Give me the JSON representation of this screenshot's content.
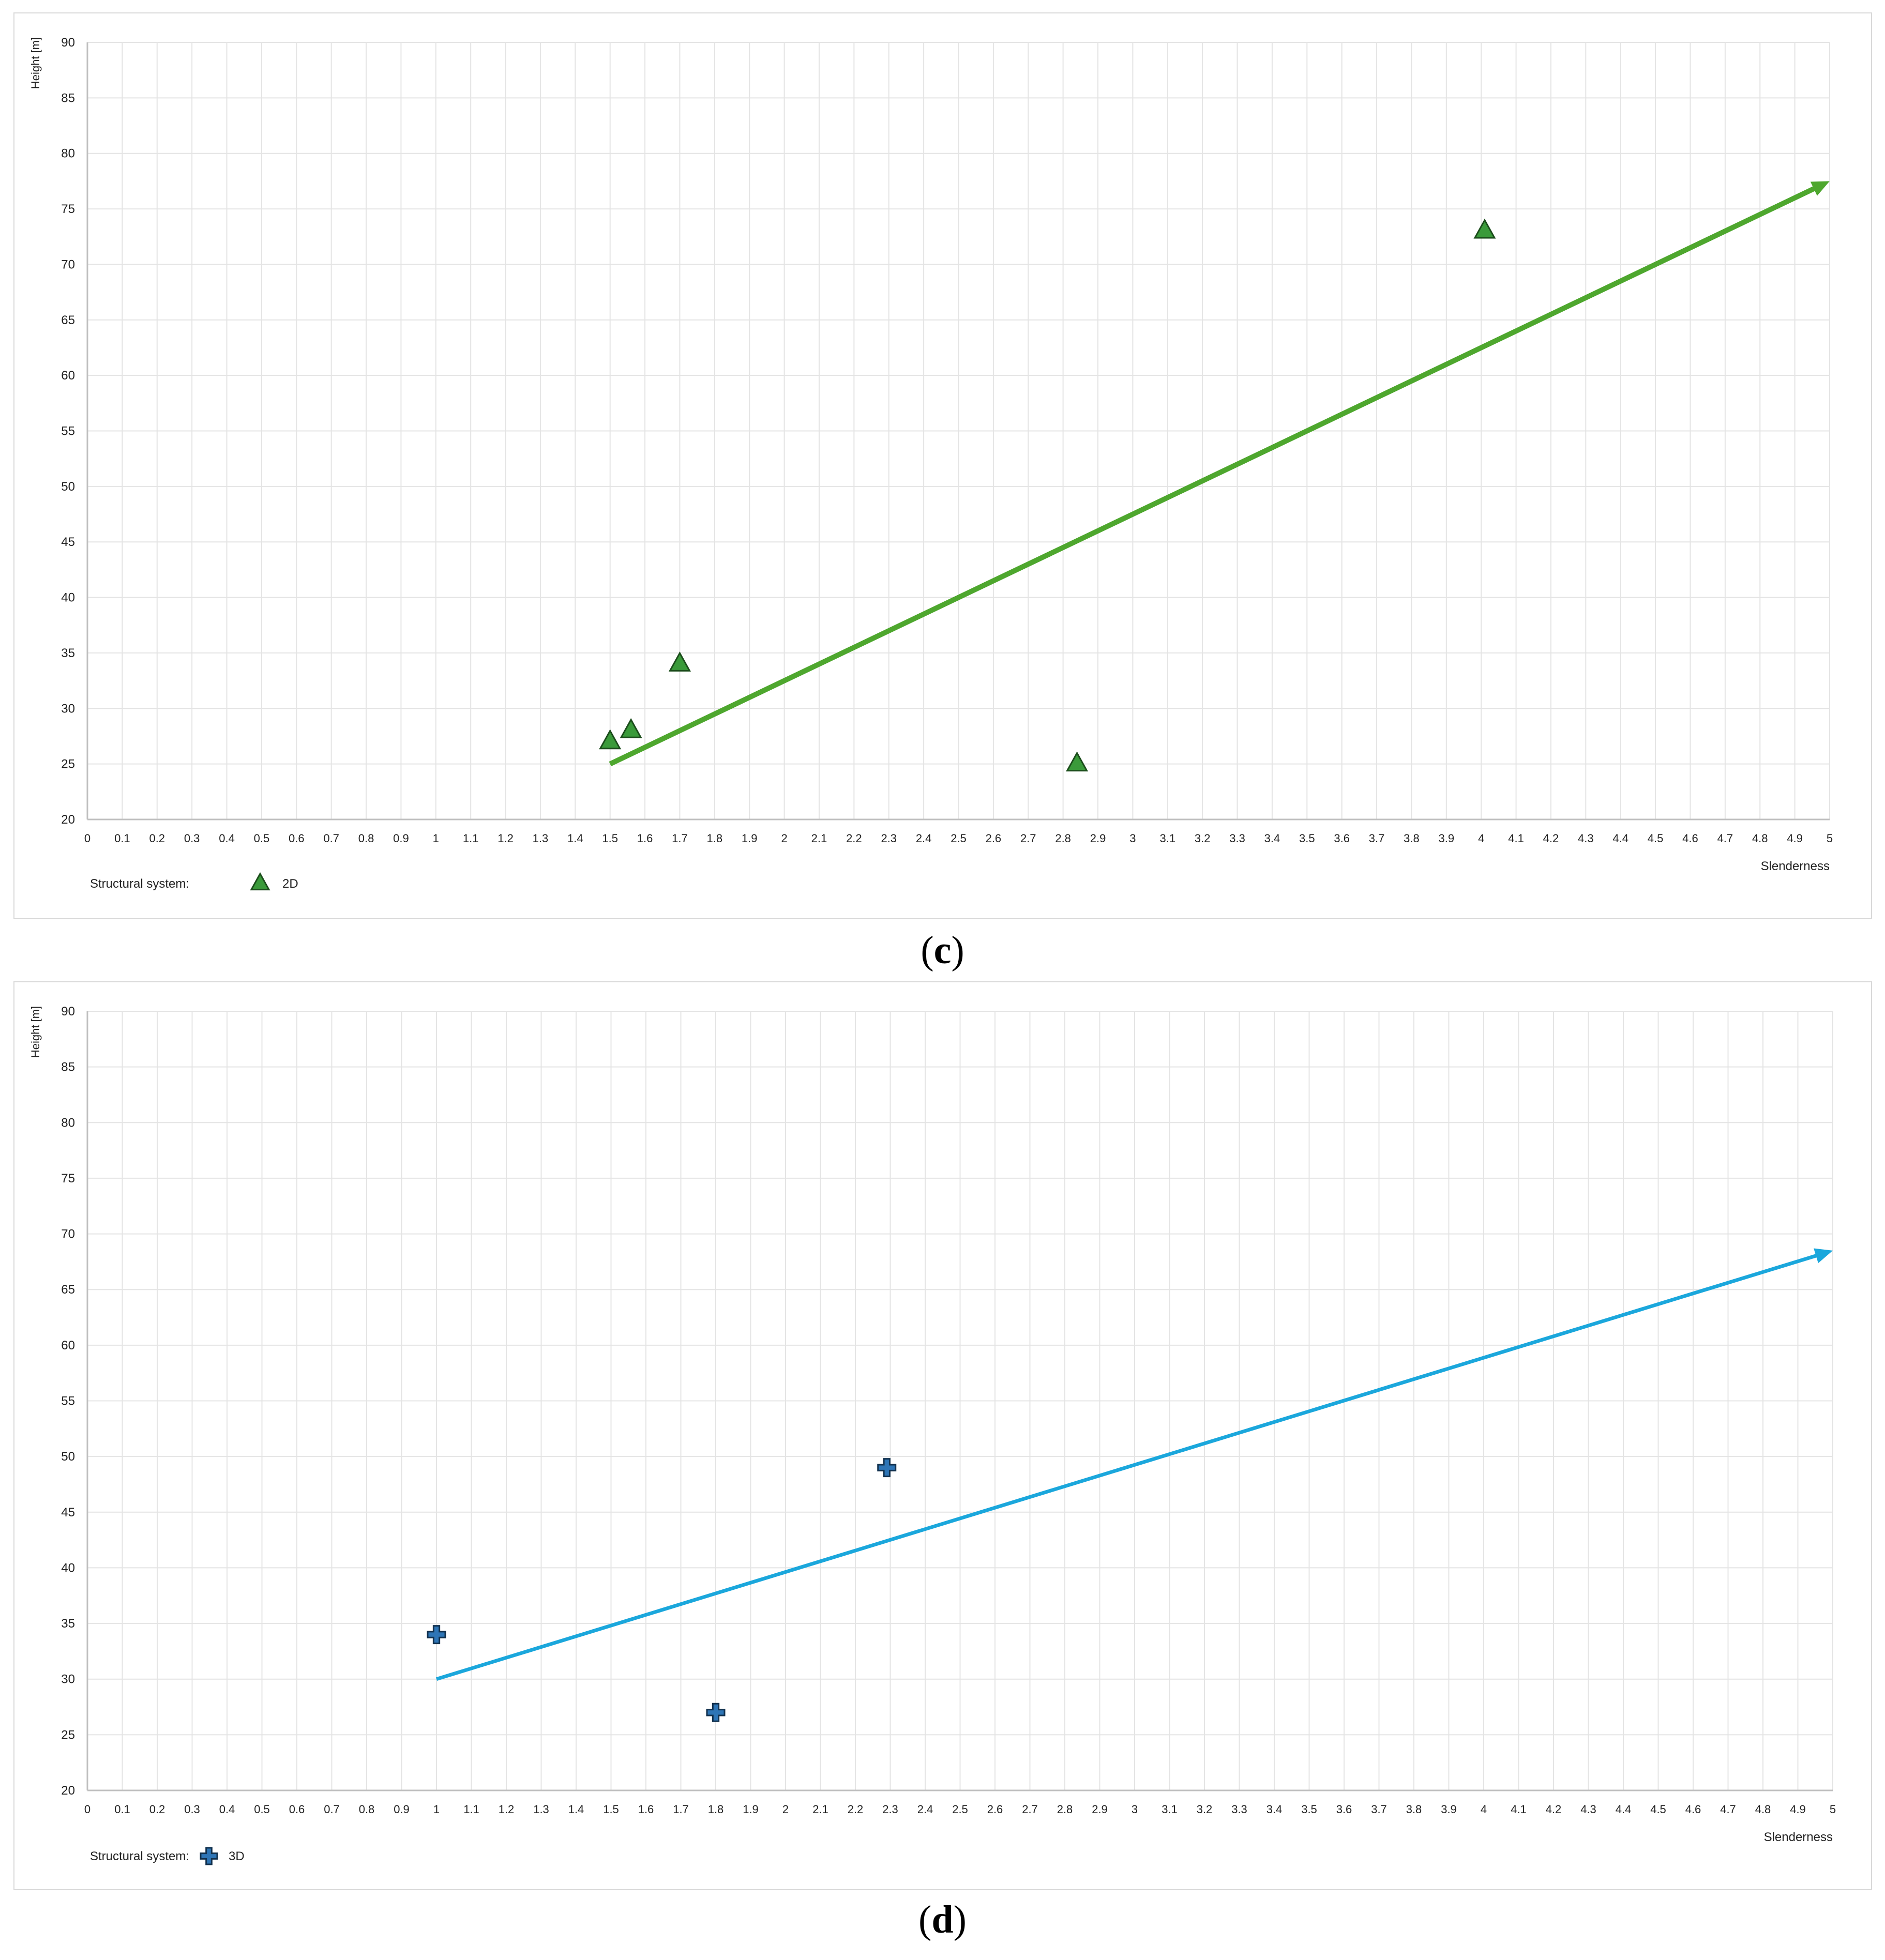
{
  "captions": {
    "c": {
      "open": "(",
      "letter": "c",
      "close": ")"
    },
    "d": {
      "open": "(",
      "letter": "d",
      "close": ")"
    }
  },
  "chart_data": [
    {
      "type": "scatter",
      "panel": "c",
      "ylabel": "Height [m]",
      "xlabel": "Slenderness",
      "xlim": [
        0,
        5
      ],
      "ylim": [
        20,
        90
      ],
      "xticks": [
        "0",
        "0.1",
        "0.2",
        "0.3",
        "0.4",
        "0.5",
        "0.6",
        "0.7",
        "0.8",
        "0.9",
        "1",
        "1.1",
        "1.2",
        "1.3",
        "1.4",
        "1.5",
        "1.6",
        "1.7",
        "1.8",
        "1.9",
        "2",
        "2.1",
        "2.2",
        "2.3",
        "2.4",
        "2.5",
        "2.6",
        "2.7",
        "2.8",
        "2.9",
        "3",
        "3.1",
        "3.2",
        "3.3",
        "3.4",
        "3.5",
        "3.6",
        "3.7",
        "3.8",
        "3.9",
        "4",
        "4.1",
        "4.2",
        "4.3",
        "4.4",
        "4.5",
        "4.6",
        "4.7",
        "4.8",
        "4.9",
        "5"
      ],
      "yticks": [
        "20",
        "25",
        "30",
        "35",
        "40",
        "45",
        "50",
        "55",
        "60",
        "65",
        "70",
        "75",
        "80",
        "85",
        "90"
      ],
      "grid": true,
      "legend": {
        "position": "bottom-left",
        "title": "Structural system:",
        "entries": [
          "2D"
        ]
      },
      "series": [
        {
          "name": "2D",
          "marker": "triangle",
          "color": "#3a9a3a",
          "points": [
            [
              1.5,
              27
            ],
            [
              1.56,
              28
            ],
            [
              1.7,
              34
            ],
            [
              2.84,
              25
            ],
            [
              4.01,
              73
            ]
          ]
        }
      ],
      "trend": {
        "color": "#4ea72e",
        "from": [
          1.5,
          25
        ],
        "to": [
          5.0,
          77.5
        ],
        "arrow": true
      }
    },
    {
      "type": "scatter",
      "panel": "d",
      "ylabel": "Height [m]",
      "xlabel": "Slenderness",
      "xlim": [
        0,
        5
      ],
      "ylim": [
        20,
        90
      ],
      "xticks": [
        "0",
        "0.1",
        "0.2",
        "0.3",
        "0.4",
        "0.5",
        "0.6",
        "0.7",
        "0.8",
        "0.9",
        "1",
        "1.1",
        "1.2",
        "1.3",
        "1.4",
        "1.5",
        "1.6",
        "1.7",
        "1.8",
        "1.9",
        "2",
        "2.1",
        "2.2",
        "2.3",
        "2.4",
        "2.5",
        "2.6",
        "2.7",
        "2.8",
        "2.9",
        "3",
        "3.1",
        "3.2",
        "3.3",
        "3.4",
        "3.5",
        "3.6",
        "3.7",
        "3.8",
        "3.9",
        "4",
        "4.1",
        "4.2",
        "4.3",
        "4.4",
        "4.5",
        "4.6",
        "4.7",
        "4.8",
        "4.9",
        "5"
      ],
      "yticks": [
        "20",
        "25",
        "30",
        "35",
        "40",
        "45",
        "50",
        "55",
        "60",
        "65",
        "70",
        "75",
        "80",
        "85",
        "90"
      ],
      "grid": true,
      "legend": {
        "position": "bottom-left",
        "title": "Structural system:",
        "entries": [
          "3D"
        ]
      },
      "series": [
        {
          "name": "3D",
          "marker": "cross",
          "color": "#2e75b6",
          "points": [
            [
              1.0,
              34
            ],
            [
              1.8,
              27
            ],
            [
              2.29,
              49
            ]
          ]
        }
      ],
      "trend": {
        "color": "#1ba7dc",
        "from": [
          1.0,
          30
        ],
        "to": [
          5.0,
          68.5
        ],
        "arrow": true
      }
    }
  ]
}
